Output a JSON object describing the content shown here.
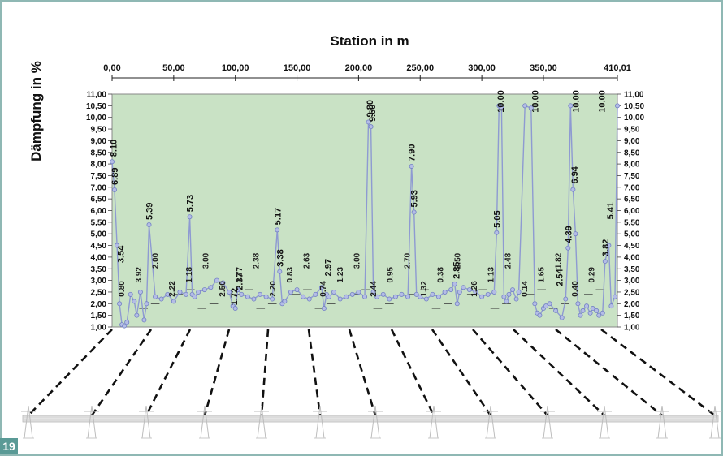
{
  "figure_number": "19",
  "chart_data": {
    "type": "line",
    "title": "",
    "xlabel": "Station in m",
    "ylabel": "Dämpfung in %",
    "xlim": [
      0,
      410.01
    ],
    "ylim": [
      1.0,
      11.0
    ],
    "x_ticks": [
      "0,00",
      "50,00",
      "100,00",
      "150,00",
      "200,00",
      "250,00",
      "300,00",
      "350,00",
      "410,01"
    ],
    "x_tick_values": [
      0,
      50,
      100,
      150,
      200,
      250,
      300,
      350,
      410.01
    ],
    "y_ticks": [
      "1,00",
      "1,50",
      "2,00",
      "2,50",
      "3,00",
      "3,50",
      "4,00",
      "4,50",
      "5,00",
      "5,50",
      "6,00",
      "6,50",
      "7,00",
      "7,50",
      "8,00",
      "8,50",
      "9,00",
      "9,50",
      "10,00",
      "10,50",
      "11,00"
    ],
    "y_tick_values": [
      1.0,
      1.5,
      2.0,
      2.5,
      3.0,
      3.5,
      4.0,
      4.5,
      5.0,
      5.5,
      6.0,
      6.5,
      7.0,
      7.5,
      8.0,
      8.5,
      9.0,
      9.5,
      10.0,
      10.5,
      11.0
    ],
    "grid": false,
    "background_color": "#c9e2c5",
    "series_color": "#8e9ad2",
    "series": [
      {
        "x": [
          0,
          2,
          4,
          6,
          8,
          10,
          12,
          15,
          18,
          20,
          23,
          26,
          28,
          30,
          35,
          40,
          45,
          50,
          55,
          60,
          63,
          65,
          67,
          70,
          75,
          80,
          85,
          90,
          95,
          98,
          100,
          102,
          105,
          110,
          115,
          120,
          125,
          130,
          134,
          136,
          138,
          140,
          145,
          150,
          155,
          160,
          165,
          170,
          172,
          174,
          176,
          180,
          185,
          190,
          195,
          200,
          205,
          208,
          210,
          212,
          215,
          220,
          225,
          230,
          235,
          240,
          243,
          245,
          247,
          250,
          255,
          260,
          265,
          270,
          275,
          278,
          280,
          282,
          285,
          290,
          295,
          300,
          305,
          310,
          312,
          314,
          316,
          318,
          320,
          322,
          325,
          328,
          330,
          335,
          340,
          343,
          345,
          347,
          350,
          352,
          355,
          360,
          365,
          368,
          370,
          372,
          374,
          376,
          378,
          380,
          382,
          385,
          388,
          390,
          393,
          395,
          398,
          400,
          403,
          405,
          408,
          410
        ],
        "y": [
          8.1,
          6.89,
          4.5,
          2.0,
          1.1,
          1.05,
          1.2,
          2.4,
          2.1,
          1.5,
          2.5,
          1.3,
          2.0,
          5.39,
          2.3,
          2.2,
          2.4,
          2.1,
          2.5,
          2.4,
          5.73,
          2.4,
          2.3,
          2.5,
          2.6,
          2.7,
          3.0,
          2.9,
          2.5,
          1.9,
          1.8,
          2.6,
          2.4,
          2.3,
          2.2,
          2.4,
          2.3,
          2.2,
          5.17,
          3.38,
          2.0,
          2.1,
          2.5,
          2.6,
          2.3,
          2.2,
          2.4,
          2.7,
          1.8,
          2.4,
          2.3,
          2.5,
          2.2,
          2.3,
          2.4,
          2.5,
          2.3,
          9.8,
          9.6,
          2.5,
          2.3,
          2.4,
          2.2,
          2.3,
          2.4,
          2.3,
          7.9,
          5.93,
          2.4,
          2.3,
          2.2,
          2.4,
          2.3,
          2.5,
          2.6,
          2.85,
          2.0,
          2.5,
          2.7,
          2.6,
          2.5,
          2.3,
          2.4,
          2.5,
          5.05,
          10.5,
          10.4,
          2.3,
          2.1,
          2.4,
          2.6,
          2.2,
          2.5,
          10.5,
          10.4,
          2.0,
          1.6,
          1.5,
          1.8,
          1.9,
          2.0,
          1.7,
          1.4,
          2.2,
          4.39,
          10.5,
          6.9,
          5.0,
          2.0,
          1.5,
          1.7,
          1.9,
          1.6,
          1.8,
          1.7,
          1.5,
          1.6,
          3.82,
          4.5,
          1.9,
          2.3,
          10.5
        ]
      }
    ],
    "data_labels": [
      {
        "x": 1,
        "y": 8.1,
        "text": "8.10"
      },
      {
        "x": 2,
        "y": 6.89,
        "text": "6.89"
      },
      {
        "x": 7,
        "y": 3.54,
        "text": "3.54"
      },
      {
        "x": 30,
        "y": 5.39,
        "text": "5.39"
      },
      {
        "x": 63,
        "y": 5.73,
        "text": "5.73"
      },
      {
        "x": 99,
        "y": 1.72,
        "text": "1.72"
      },
      {
        "x": 103,
        "y": 2.37,
        "text": "2.37"
      },
      {
        "x": 134,
        "y": 5.17,
        "text": "5.17"
      },
      {
        "x": 136,
        "y": 3.38,
        "text": "3.38"
      },
      {
        "x": 175,
        "y": 2.97,
        "text": "2.97"
      },
      {
        "x": 209,
        "y": 9.8,
        "text": "9.80"
      },
      {
        "x": 211,
        "y": 9.6,
        "text": "9.60"
      },
      {
        "x": 243,
        "y": 7.9,
        "text": "7.90"
      },
      {
        "x": 245,
        "y": 5.93,
        "text": "5.93"
      },
      {
        "x": 279,
        "y": 2.85,
        "text": "2.85"
      },
      {
        "x": 312,
        "y": 5.05,
        "text": "5.05"
      },
      {
        "x": 315,
        "y": 10.0,
        "text": "10.00"
      },
      {
        "x": 343,
        "y": 10.0,
        "text": "10.00"
      },
      {
        "x": 363,
        "y": 2.54,
        "text": "2.54"
      },
      {
        "x": 370,
        "y": 4.39,
        "text": "4.39"
      },
      {
        "x": 375,
        "y": 6.94,
        "text": "6.94"
      },
      {
        "x": 376,
        "y": 10.0,
        "text": "10.00"
      },
      {
        "x": 397,
        "y": 10.0,
        "text": "10.00"
      },
      {
        "x": 400,
        "y": 3.82,
        "text": "3.82"
      },
      {
        "x": 404,
        "y": 5.41,
        "text": "5.41"
      }
    ],
    "clutter_labels": [
      "0.80",
      "3.92",
      "2.00",
      "2.22",
      "1.18",
      "3.00",
      "2.50",
      "1.77",
      "2.38",
      "2.20",
      "0.83",
      "2.63",
      "0.74",
      "1.23",
      "3.00",
      "2.44",
      "0.95",
      "2.70",
      "1.32",
      "0.38",
      "2.50",
      "1.26",
      "1.13",
      "2.48",
      "0.14",
      "1.65",
      "1.82",
      "0.40",
      "0.29"
    ]
  }
}
